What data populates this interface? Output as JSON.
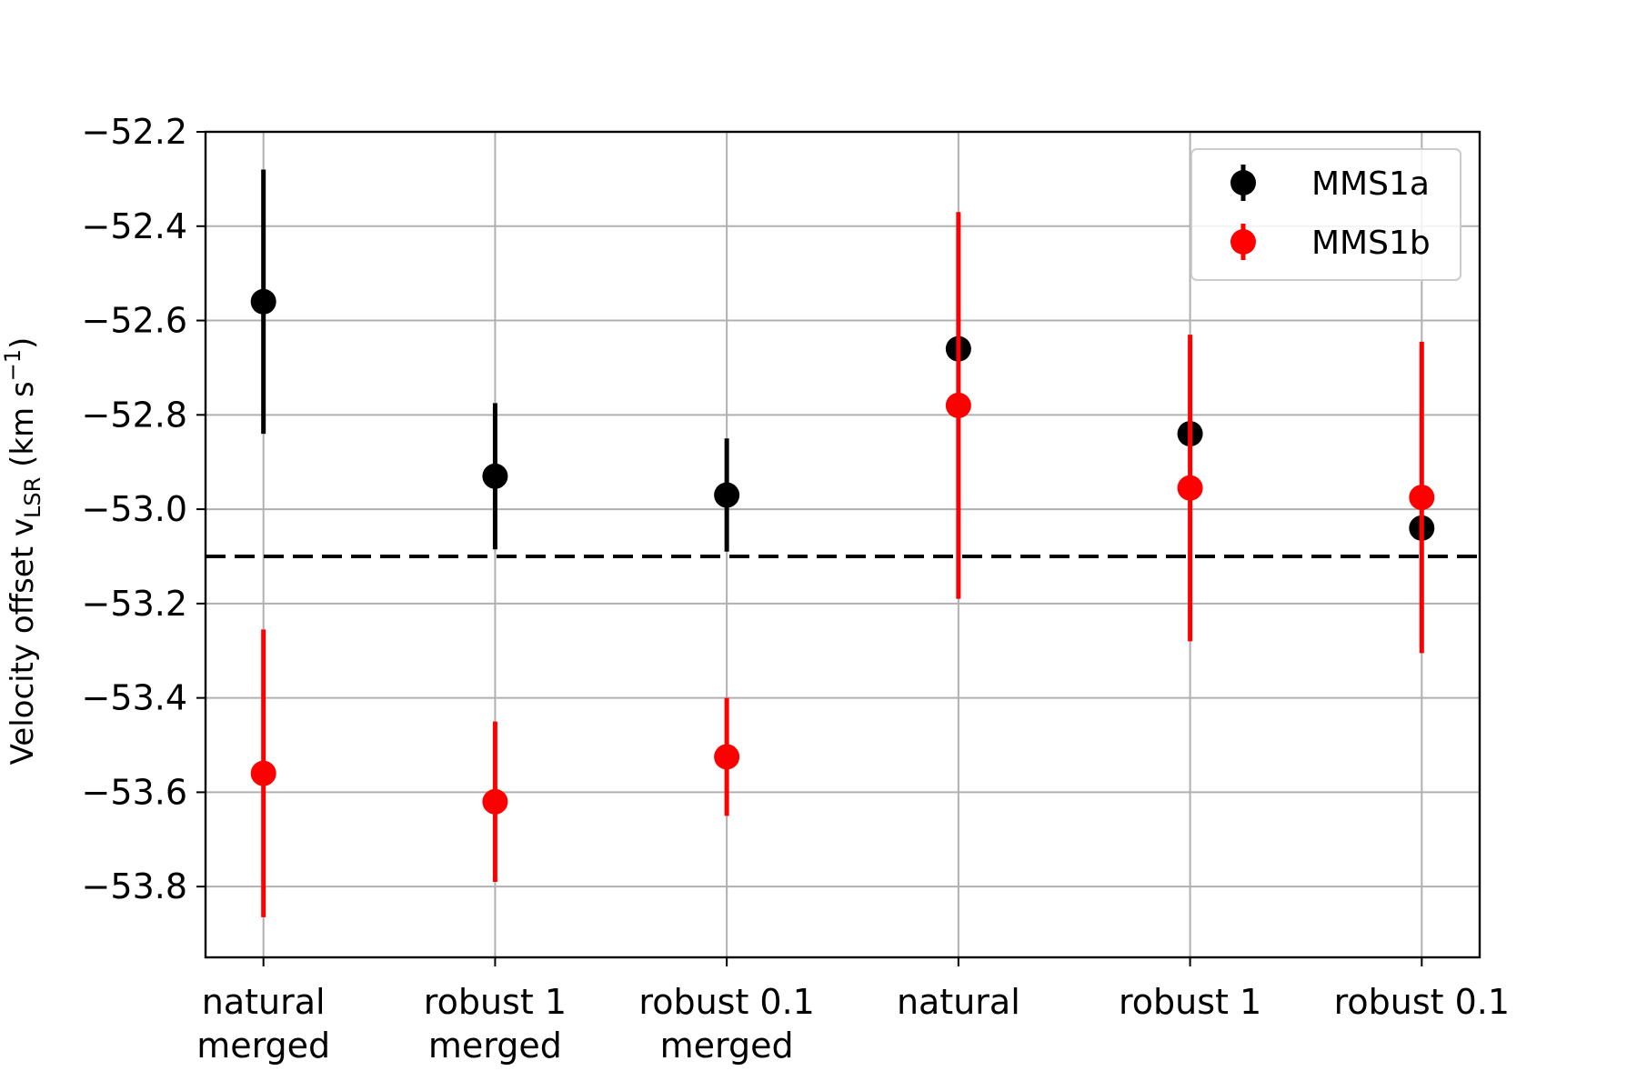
{
  "chart_data": {
    "type": "scatter",
    "categories": [
      [
        "natural",
        "merged"
      ],
      [
        "robust 1",
        "merged"
      ],
      [
        "robust 0.1",
        "merged"
      ],
      [
        "natural"
      ],
      [
        "robust 1"
      ],
      [
        "robust 0.1"
      ]
    ],
    "ylabel": {
      "main": "Velocity offset v",
      "subscript": "LSR",
      "unit_open": " (km s",
      "superscript": "−1",
      "unit_close": ")"
    },
    "ylim": [
      -53.95,
      -52.2
    ],
    "yticks": [
      -52.2,
      -52.4,
      -52.6,
      -52.8,
      -53.0,
      -53.2,
      -53.4,
      -53.6,
      -53.8
    ],
    "ytick_labels": [
      "−52.2",
      "−52.4",
      "−52.6",
      "−52.8",
      "−53.0",
      "−53.2",
      "−53.4",
      "−53.6",
      "−53.8"
    ],
    "grid": true,
    "legend_position": "top-right",
    "reference_line": {
      "y": -53.1,
      "style": "dashed",
      "color": "#000000"
    },
    "series": [
      {
        "name": "MMS1a",
        "color": "#000000",
        "values": [
          -52.56,
          -52.93,
          -52.97,
          -52.66,
          -52.84,
          -53.04
        ],
        "errors": [
          0.28,
          0.155,
          0.12,
          0.0,
          0.0,
          0.0
        ]
      },
      {
        "name": "MMS1b",
        "color": "#ff0000",
        "values": [
          -53.56,
          -53.62,
          -53.525,
          -52.78,
          -52.955,
          -52.975
        ],
        "errors": [
          0.305,
          0.17,
          0.125,
          0.41,
          0.325,
          0.33
        ]
      }
    ]
  }
}
